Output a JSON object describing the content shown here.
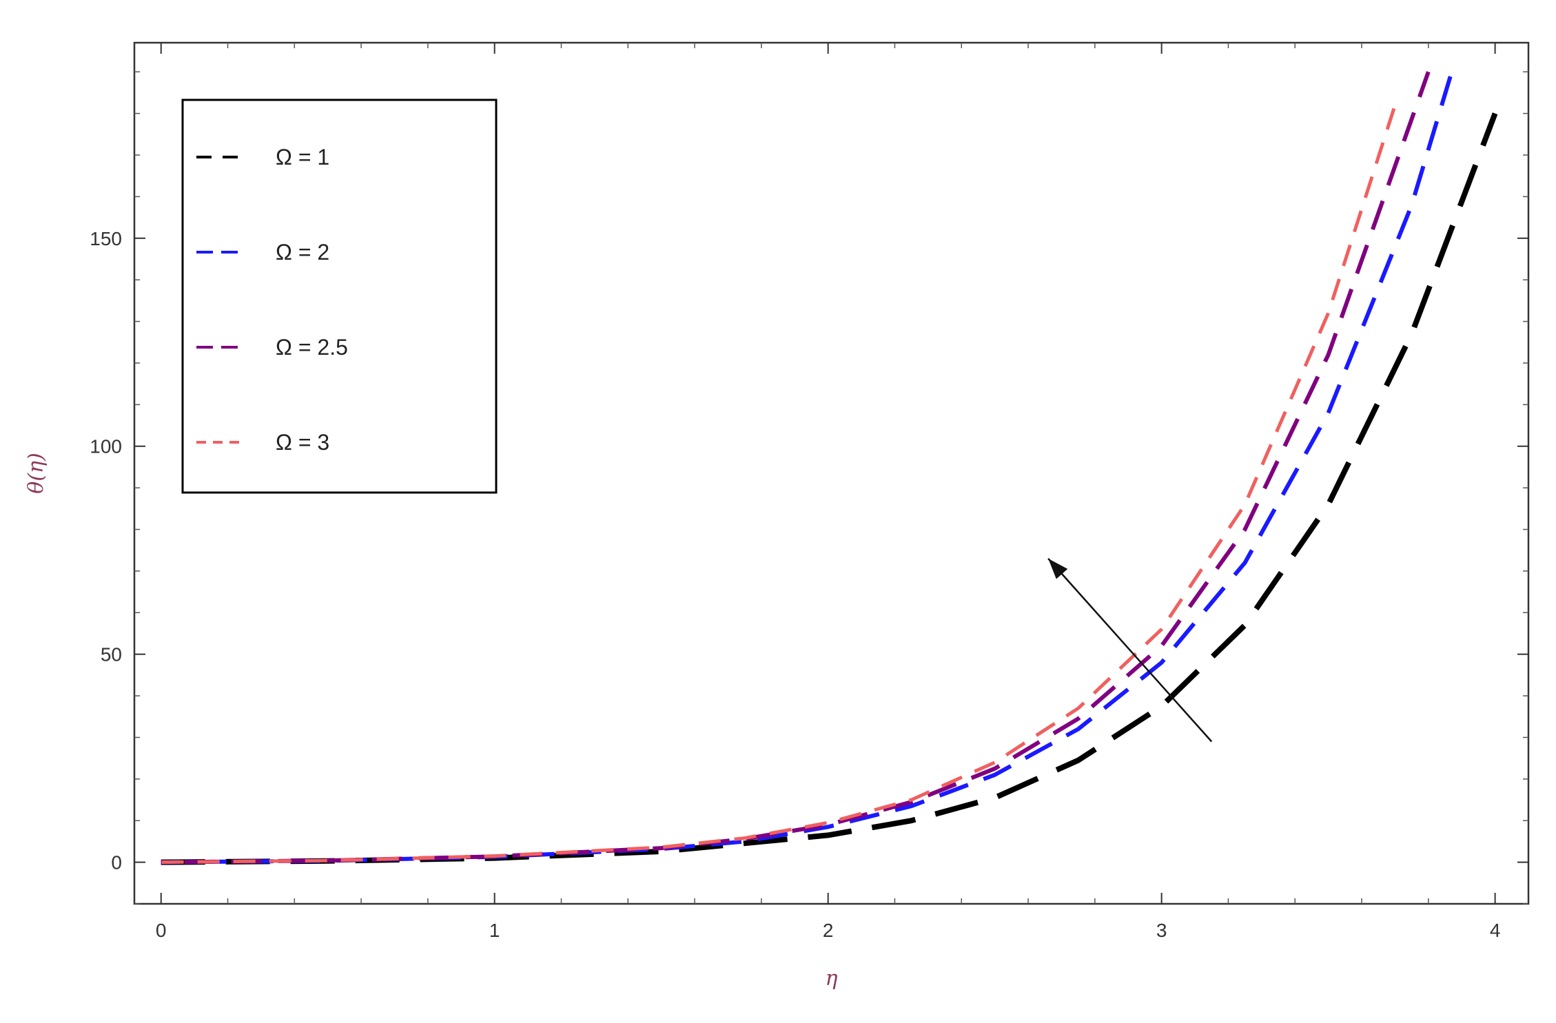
{
  "chart_data": {
    "type": "line",
    "title": "",
    "xlabel": "η",
    "ylabel": "θ(η)",
    "xlim": [
      -0.08,
      4.1
    ],
    "ylim": [
      -10,
      197
    ],
    "xticks": [
      0,
      1,
      2,
      3,
      4
    ],
    "yticks": [
      0,
      50,
      100,
      150
    ],
    "grid": false,
    "legend_position": "top-left",
    "series": [
      {
        "name": "Ω = 1",
        "color": "#000000",
        "dash": "long",
        "points": [
          [
            0,
            0
          ],
          [
            0.5,
            0.3
          ],
          [
            1,
            1
          ],
          [
            1.5,
            2.6
          ],
          [
            2,
            6.5
          ],
          [
            2.25,
            10
          ],
          [
            2.5,
            15.5
          ],
          [
            2.75,
            24.5
          ],
          [
            3,
            37.5
          ],
          [
            3.25,
            57
          ],
          [
            3.5,
            86
          ],
          [
            3.75,
            127
          ],
          [
            4,
            180
          ]
        ]
      },
      {
        "name": "Ω = 2",
        "color": "#1a1aff",
        "dash": "medium",
        "points": [
          [
            0,
            0
          ],
          [
            0.5,
            0.35
          ],
          [
            1,
            1.3
          ],
          [
            1.5,
            3.2
          ],
          [
            1.75,
            5
          ],
          [
            2,
            8.5
          ],
          [
            2.25,
            13.5
          ],
          [
            2.5,
            21
          ],
          [
            2.75,
            32
          ],
          [
            3,
            48
          ],
          [
            3.25,
            72
          ],
          [
            3.5,
            108
          ],
          [
            3.75,
            158
          ],
          [
            3.87,
            190
          ]
        ]
      },
      {
        "name": "Ω = 2.5",
        "color": "#800080",
        "dash": "medium",
        "points": [
          [
            0,
            0
          ],
          [
            0.5,
            0.4
          ],
          [
            1,
            1.4
          ],
          [
            1.5,
            3.4
          ],
          [
            1.75,
            5.6
          ],
          [
            2,
            9
          ],
          [
            2.25,
            14.5
          ],
          [
            2.5,
            22.5
          ],
          [
            2.75,
            34.5
          ],
          [
            3,
            52
          ],
          [
            3.25,
            80
          ],
          [
            3.5,
            122
          ],
          [
            3.8,
            190
          ]
        ]
      },
      {
        "name": "Ω = 3",
        "color": "#f06060",
        "dash": "short",
        "points": [
          [
            0,
            0
          ],
          [
            0.5,
            0.4
          ],
          [
            1,
            1.5
          ],
          [
            1.5,
            3.6
          ],
          [
            1.75,
            5.8
          ],
          [
            2,
            9.5
          ],
          [
            2.25,
            15
          ],
          [
            2.5,
            24
          ],
          [
            2.75,
            37
          ],
          [
            3,
            56
          ],
          [
            3.25,
            86
          ],
          [
            3.5,
            132
          ],
          [
            3.7,
            182
          ]
        ]
      }
    ],
    "annotations": [
      {
        "type": "arrow",
        "from": [
          3.15,
          29
        ],
        "to": [
          2.66,
          73
        ]
      }
    ]
  }
}
